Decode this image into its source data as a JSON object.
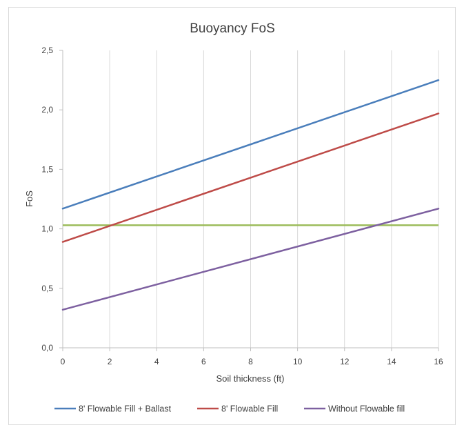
{
  "chart_data": {
    "type": "line",
    "title": "Buoyancy FoS",
    "xlabel": "Soil thickness (ft)",
    "ylabel": "FoS",
    "xlim": [
      0,
      16
    ],
    "ylim": [
      0,
      2.5
    ],
    "x_ticks": [
      0,
      2,
      4,
      6,
      8,
      10,
      12,
      14,
      16
    ],
    "y_ticks": [
      0.0,
      0.5,
      1.0,
      1.5,
      2.0,
      2.5
    ],
    "x_tick_labels": [
      "0",
      "2",
      "4",
      "6",
      "8",
      "10",
      "12",
      "14",
      "16"
    ],
    "y_tick_labels": [
      "0,0",
      "0,5",
      "1,0",
      "1,5",
      "2,0",
      "2,5"
    ],
    "grid": "vertical",
    "legend_position": "bottom",
    "series": [
      {
        "name": "8' Flowable Fill + Ballast",
        "color": "#4a7ebb",
        "x": [
          0,
          16
        ],
        "y": [
          1.17,
          2.25
        ]
      },
      {
        "name": "8' Flowable Fill",
        "color": "#be4b48",
        "x": [
          0,
          16
        ],
        "y": [
          0.89,
          1.97
        ]
      },
      {
        "name": "Without Flowable fill",
        "color": "#7d60a0",
        "x": [
          0,
          16
        ],
        "y": [
          0.32,
          1.17
        ]
      }
    ],
    "reference_lines": [
      {
        "color": "#9bbb59",
        "y": 1.03
      }
    ]
  }
}
